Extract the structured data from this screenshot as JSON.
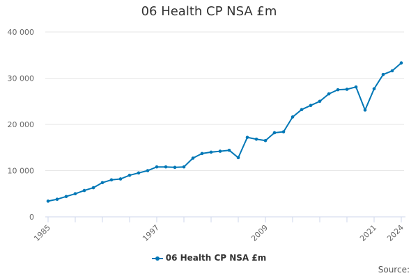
{
  "chart_data": {
    "type": "line",
    "title": "06 Health CP NSA £m",
    "xlabel": "",
    "ylabel": "",
    "x": [
      1985,
      1986,
      1987,
      1988,
      1989,
      1990,
      1991,
      1992,
      1993,
      1994,
      1995,
      1996,
      1997,
      1998,
      1999,
      2000,
      2001,
      2002,
      2003,
      2004,
      2005,
      2006,
      2007,
      2008,
      2009,
      2010,
      2011,
      2012,
      2013,
      2014,
      2015,
      2016,
      2017,
      2018,
      2019,
      2020,
      2021,
      2022,
      2023,
      2024
    ],
    "x_tick_labels": [
      "1985",
      "1997",
      "2009",
      "2021",
      "2024"
    ],
    "x_tick_values": [
      1985,
      1997,
      2009,
      2021,
      2024
    ],
    "y_tick_labels": [
      "0",
      "10 000",
      "20 000",
      "30 000",
      "40 000"
    ],
    "y_tick_values": [
      0,
      10000,
      20000,
      30000,
      40000
    ],
    "ylim": [
      0,
      40000
    ],
    "grid": true,
    "legend_position": "bottom",
    "series": [
      {
        "name": "06 Health CP NSA £m",
        "color": "#0077b6",
        "values": [
          3400,
          3800,
          4400,
          5000,
          5700,
          6300,
          7400,
          8000,
          8200,
          9000,
          9500,
          10000,
          10800,
          10800,
          10700,
          10800,
          12700,
          13700,
          14000,
          14200,
          14400,
          12800,
          17200,
          16800,
          16500,
          18200,
          18400,
          21600,
          23200,
          24100,
          25000,
          26600,
          27500,
          27600,
          28100,
          23100,
          27700,
          30800,
          31600,
          33300
        ]
      }
    ]
  },
  "legend": {
    "label": "06 Health CP NSA £m"
  },
  "footer": {
    "source_label": "Source:"
  }
}
